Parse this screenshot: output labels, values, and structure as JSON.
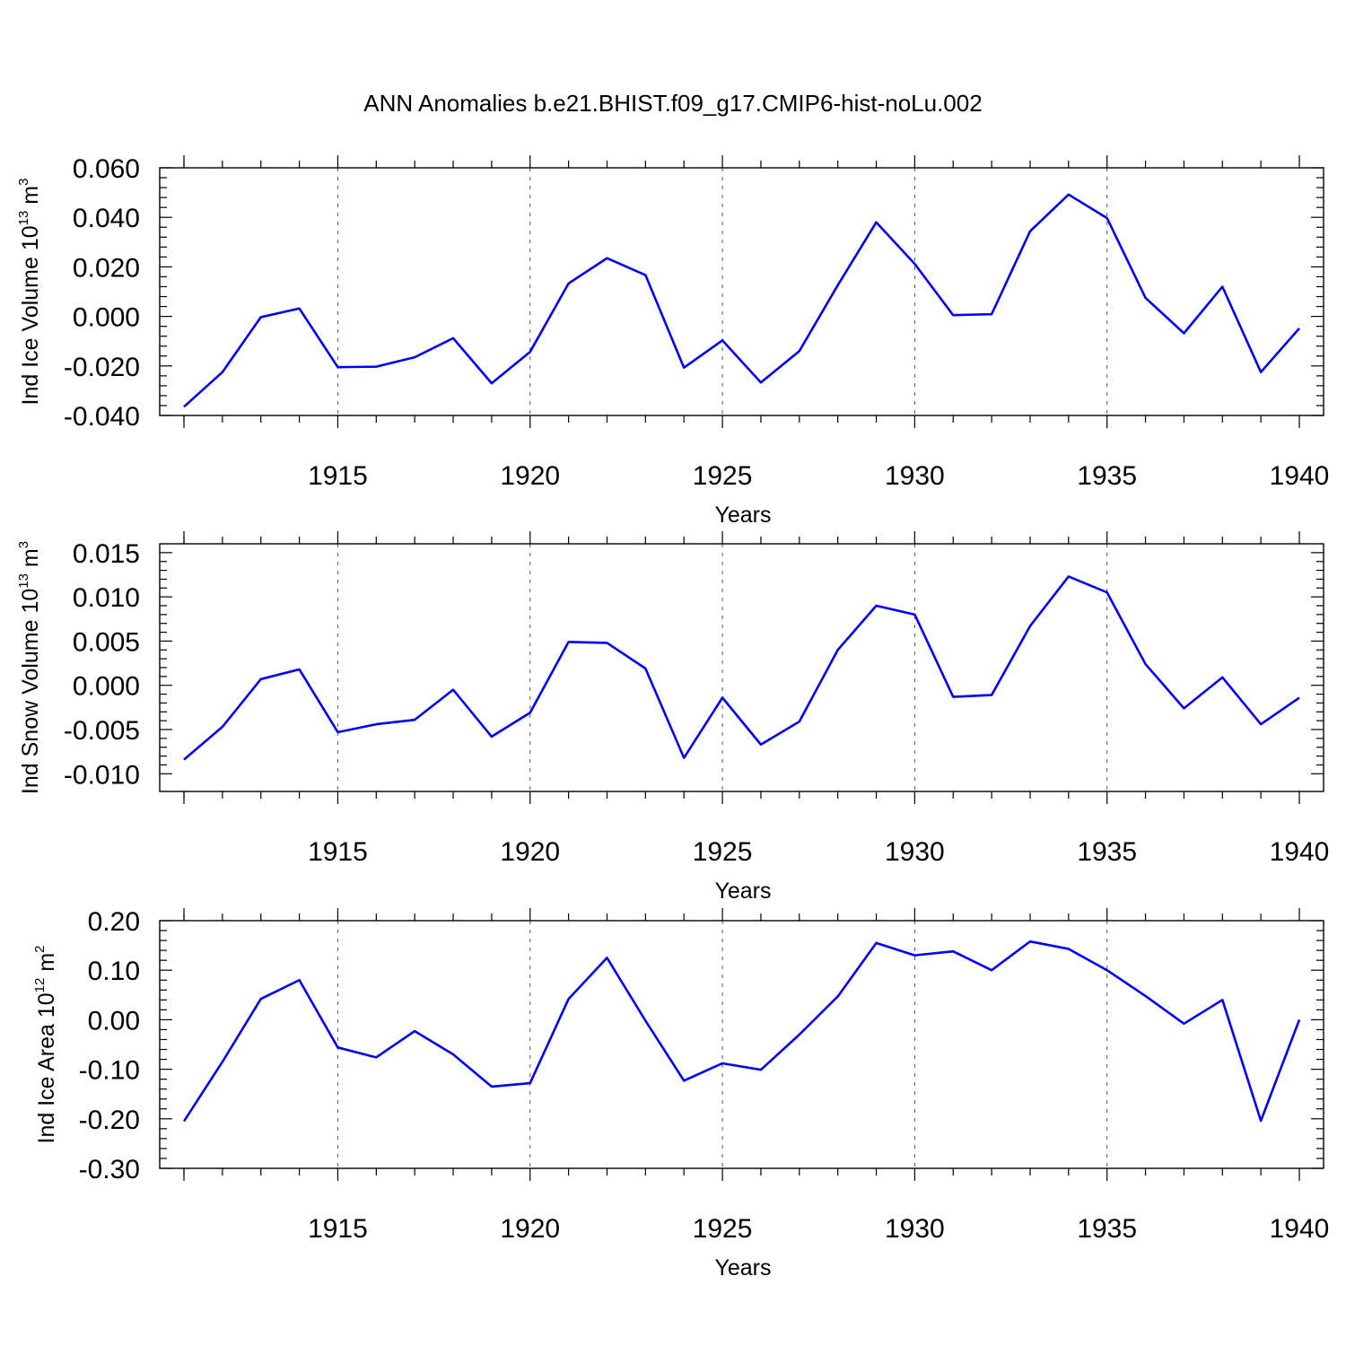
{
  "figure_title": "ANN Anomalies b.e21.BHIST.f09_g17.CMIP6-hist-noLu.002",
  "chart_data": [
    {
      "type": "line",
      "title": "",
      "xlabel": "Years",
      "ylabel": "Ind Ice Volume",
      "ylabel_unit": {
        "base": "10",
        "exp": "13",
        "unit": "m",
        "unit_exp": "3"
      },
      "x": [
        1911,
        1912,
        1913,
        1914,
        1915,
        1916,
        1917,
        1918,
        1919,
        1920,
        1921,
        1922,
        1923,
        1924,
        1925,
        1926,
        1927,
        1928,
        1929,
        1930,
        1931,
        1932,
        1933,
        1934,
        1935,
        1936,
        1937,
        1938,
        1939,
        1940
      ],
      "xlim": [
        1911,
        1940
      ],
      "xticks": [
        1915,
        1920,
        1925,
        1930,
        1935,
        1940
      ],
      "xtick_labels": [
        "1915",
        "1920",
        "1925",
        "1930",
        "1935",
        "1940"
      ],
      "ylim": [
        -0.04,
        0.06
      ],
      "yticks": [
        0.06,
        0.04,
        0.02,
        0.0,
        -0.02,
        -0.04
      ],
      "ytick_labels": [
        "0.060",
        "0.040",
        "0.020",
        "0.000",
        "-0.020",
        "-0.040"
      ],
      "grid": "dashed vertical at major x ticks",
      "series": [
        {
          "name": "Ind Ice Volume",
          "color": "#0000ff",
          "values": [
            -0.0365,
            -0.0225,
            -0.0003,
            0.0032,
            -0.0205,
            -0.0203,
            -0.0165,
            -0.0088,
            -0.027,
            -0.0143,
            0.0133,
            0.0235,
            0.0167,
            -0.0207,
            -0.0097,
            -0.0267,
            -0.014,
            0.0126,
            0.038,
            0.0212,
            0.0005,
            0.0009,
            0.0344,
            0.0492,
            0.0397,
            0.0075,
            -0.0068,
            0.012,
            -0.0225,
            -0.0048
          ]
        }
      ]
    },
    {
      "type": "line",
      "title": "",
      "xlabel": "Years",
      "ylabel": "Ind Snow Volume",
      "ylabel_unit": {
        "base": "10",
        "exp": "13",
        "unit": "m",
        "unit_exp": "3"
      },
      "x": [
        1911,
        1912,
        1913,
        1914,
        1915,
        1916,
        1917,
        1918,
        1919,
        1920,
        1921,
        1922,
        1923,
        1924,
        1925,
        1926,
        1927,
        1928,
        1929,
        1930,
        1931,
        1932,
        1933,
        1934,
        1935,
        1936,
        1937,
        1938,
        1939,
        1940
      ],
      "xlim": [
        1911,
        1940
      ],
      "xticks": [
        1915,
        1920,
        1925,
        1930,
        1935,
        1940
      ],
      "xtick_labels": [
        "1915",
        "1920",
        "1925",
        "1930",
        "1935",
        "1940"
      ],
      "ylim": [
        -0.012,
        0.016
      ],
      "yticks": [
        0.015,
        0.01,
        0.005,
        0.0,
        -0.005,
        -0.01
      ],
      "ytick_labels": [
        "0.015",
        "0.010",
        "0.005",
        "0.000",
        "-0.005",
        "-0.010"
      ],
      "grid": "dashed vertical at major x ticks",
      "series": [
        {
          "name": "Ind Snow Volume",
          "color": "#0000ff",
          "values": [
            -0.0084,
            -0.0047,
            0.0007,
            0.0018,
            -0.0053,
            -0.0044,
            -0.0039,
            -0.0005,
            -0.0058,
            -0.0031,
            0.0049,
            0.0048,
            0.0019,
            -0.0082,
            -0.0014,
            -0.0067,
            -0.0041,
            0.004,
            0.009,
            0.008,
            -0.0013,
            -0.0011,
            0.0067,
            0.0123,
            0.0105,
            0.0024,
            -0.0026,
            0.0009,
            -0.0044,
            -0.0014
          ]
        }
      ]
    },
    {
      "type": "line",
      "title": "",
      "xlabel": "Years",
      "ylabel": "Ind Ice Area",
      "ylabel_unit": {
        "base": "10",
        "exp": "12",
        "unit": "m",
        "unit_exp": "2"
      },
      "x": [
        1911,
        1912,
        1913,
        1914,
        1915,
        1916,
        1917,
        1918,
        1919,
        1920,
        1921,
        1922,
        1923,
        1924,
        1925,
        1926,
        1927,
        1928,
        1929,
        1930,
        1931,
        1932,
        1933,
        1934,
        1935,
        1936,
        1937,
        1938,
        1939,
        1940
      ],
      "xlim": [
        1911,
        1940
      ],
      "xticks": [
        1915,
        1920,
        1925,
        1930,
        1935,
        1940
      ],
      "xtick_labels": [
        "1915",
        "1920",
        "1925",
        "1930",
        "1935",
        "1940"
      ],
      "ylim": [
        -0.3,
        0.2
      ],
      "yticks": [
        0.2,
        0.1,
        0.0,
        -0.1,
        -0.2,
        -0.3
      ],
      "ytick_labels": [
        "0.20",
        "0.10",
        "0.00",
        "-0.10",
        "-0.20",
        "-0.30"
      ],
      "grid": "dashed vertical at major x ticks",
      "series": [
        {
          "name": "Ind Ice Area",
          "color": "#0000ff",
          "values": [
            -0.205,
            -0.085,
            0.042,
            0.08,
            -0.056,
            -0.076,
            -0.023,
            -0.07,
            -0.135,
            -0.128,
            0.042,
            0.125,
            -0.002,
            -0.123,
            -0.088,
            -0.101,
            -0.03,
            0.047,
            0.155,
            0.13,
            0.138,
            0.1,
            0.158,
            0.143,
            0.1,
            0.048,
            -0.008,
            0.04,
            -0.204,
            0.0
          ]
        }
      ]
    }
  ]
}
